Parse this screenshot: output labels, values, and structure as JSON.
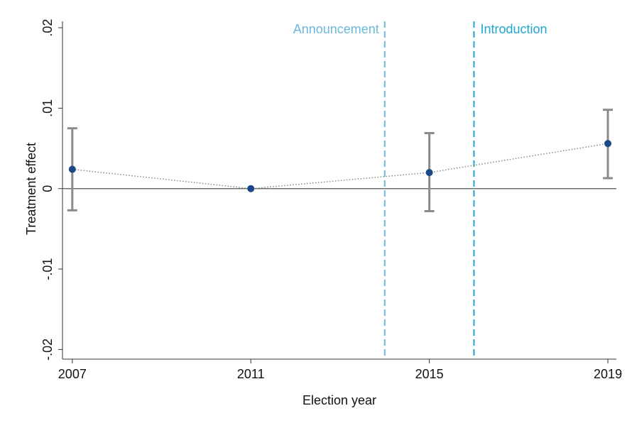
{
  "chart_data": {
    "type": "errorline",
    "x": [
      2007,
      2011,
      2015,
      2019
    ],
    "series": [
      {
        "color": "#1a478a",
        "line_color": "#888888",
        "error_color": "#8a8a8a",
        "values": [
          0.0024,
          0,
          0.002,
          0.0056
        ],
        "ci_low": [
          -0.0027,
          null,
          -0.0028,
          0.0013
        ],
        "ci_high": [
          0.0075,
          null,
          0.0069,
          0.0098
        ]
      }
    ],
    "xlim": [
      2006.78,
      2019.19
    ],
    "xticks": [
      2007,
      2011,
      2015,
      2019
    ],
    "ylim": [
      -0.0212,
      0.0208
    ],
    "yticks": [
      {
        "value": -0.02,
        "label": "-.02"
      },
      {
        "value": -0.01,
        "label": "-.01"
      },
      0,
      {
        "value": 0.01,
        "label": ".01"
      },
      {
        "value": 0.02,
        "label": ".02"
      }
    ],
    "xlabel": "Election year",
    "ylabel": "Treatment effect",
    "reference_line": 0,
    "vlines": [
      {
        "x": 2014,
        "label": "Announcement",
        "color": "#6bb8d8",
        "side": "left"
      },
      {
        "x": 2016,
        "label": "Introduction",
        "color": "#1fa6d0",
        "side": "right"
      }
    ]
  }
}
